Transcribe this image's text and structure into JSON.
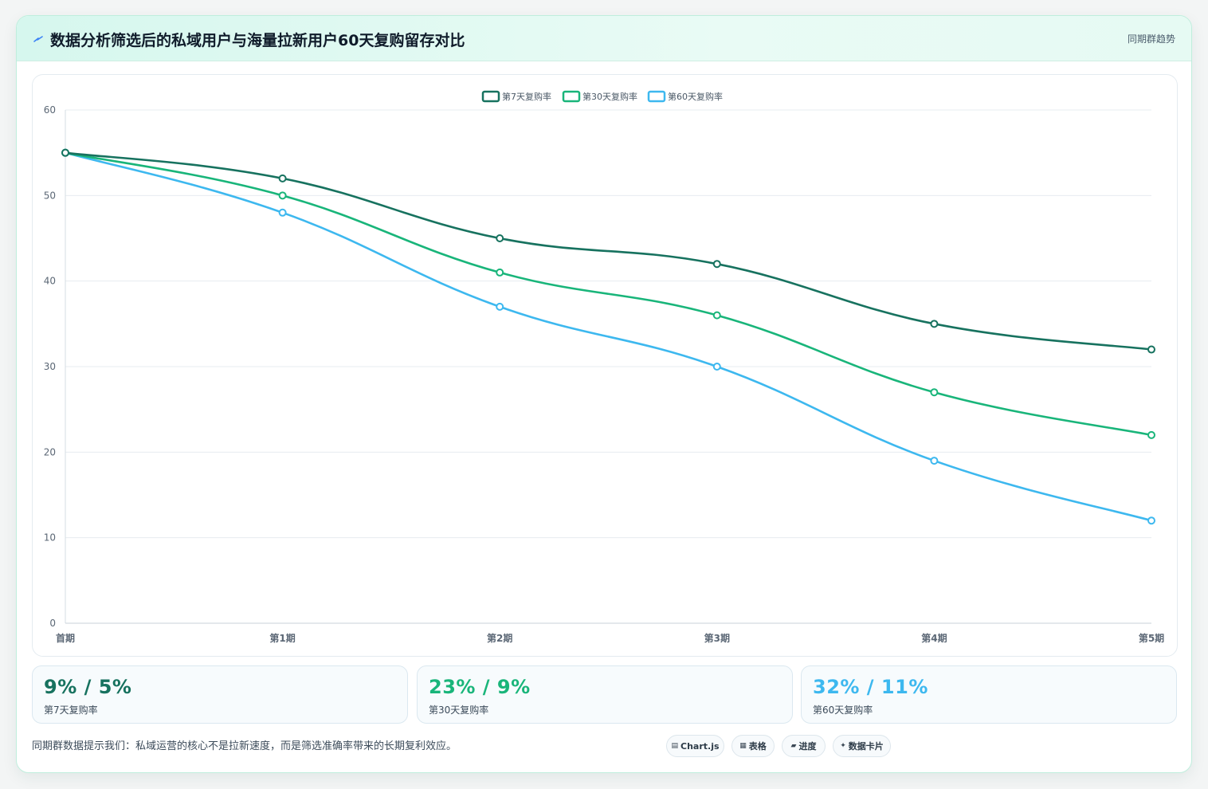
{
  "header": {
    "title": "数据分析筛选后的私域用户与海量拉新用户60天复购留存对比",
    "right_label": "同期群趋势"
  },
  "colors": {
    "series_7": "#17725f",
    "series_30": "#19b57a",
    "series_60": "#3db8ef",
    "grid": "#e7ecf0",
    "axis_text": "#5b6775"
  },
  "chart_data": {
    "type": "line",
    "categories": [
      "首期",
      "第1期",
      "第2期",
      "第3期",
      "第4期",
      "第5期"
    ],
    "series": [
      {
        "name": "第7天复购率",
        "values": [
          55,
          52,
          45,
          42,
          35,
          32
        ]
      },
      {
        "name": "第30天复购率",
        "values": [
          55,
          50,
          41,
          36,
          27,
          22
        ]
      },
      {
        "name": "第60天复购率",
        "values": [
          55,
          48,
          37,
          30,
          19,
          12
        ]
      }
    ],
    "ylim": [
      0,
      60
    ],
    "yticks": [
      "0",
      "10",
      "20",
      "30",
      "40",
      "50",
      "60"
    ],
    "grid": true,
    "legend": "top-center"
  },
  "stats": [
    {
      "value": "9% / 5%",
      "label": "第7天复购率"
    },
    {
      "value": "23% / 9%",
      "label": "第30天复购率"
    },
    {
      "value": "32% / 11%",
      "label": "第60天复购率"
    }
  ],
  "footnote": "同期群数据提示我们：私域运营的核心不是拉新速度，而是筛选准确率带来的长期复利效应。",
  "chips": [
    {
      "icon": "▤",
      "label": "Chart.js"
    },
    {
      "icon": "▦",
      "label": "表格"
    },
    {
      "icon": "▰",
      "label": "进度"
    },
    {
      "icon": "✦",
      "label": "数据卡片"
    }
  ]
}
